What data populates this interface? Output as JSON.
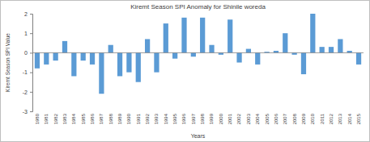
{
  "chart_data": {
    "type": "bar",
    "title": "Kiremt Season SPI Anomaly for Shinile woreda",
    "x_label": "Years",
    "y_label": "Kiremt Season SPI Value",
    "categories": [
      "1980",
      "1981",
      "1982",
      "1983",
      "1984",
      "1985",
      "1986",
      "1987",
      "1988",
      "1989",
      "1990",
      "1991",
      "1992",
      "1993",
      "1994",
      "1995",
      "1996",
      "1997",
      "1998",
      "1999",
      "2000",
      "2001",
      "2002",
      "2003",
      "2004",
      "2005",
      "2006",
      "2007",
      "2008",
      "2009",
      "2010",
      "2011",
      "2012",
      "2013",
      "2014",
      "2015"
    ],
    "values": [
      -0.8,
      -0.6,
      -0.4,
      0.6,
      -1.2,
      -0.4,
      -0.6,
      -2.1,
      0.4,
      -1.2,
      -1.0,
      -1.5,
      0.7,
      -1.0,
      1.5,
      -0.3,
      1.8,
      -0.2,
      1.8,
      0.4,
      -0.1,
      1.7,
      -0.5,
      0.2,
      -0.6,
      0.05,
      0.1,
      1.0,
      -0.1,
      -1.1,
      2.0,
      0.3,
      0.3,
      0.7,
      0.1,
      -0.6
    ],
    "color": "#5b9bd5",
    "ylim": [
      -3,
      2
    ],
    "yticks": [
      -3,
      -2,
      -1,
      0,
      1,
      2
    ],
    "grid": false
  }
}
